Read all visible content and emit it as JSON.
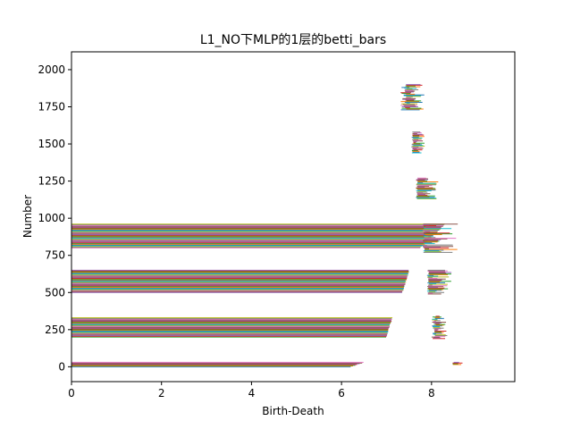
{
  "chart_data": {
    "type": "bar",
    "orientation": "horizontal",
    "title": "L1_NO下MLP的1层的betti_bars",
    "xlabel": "Birth-Death",
    "ylabel": "Number",
    "xlim": [
      0,
      9.85
    ],
    "ylim": [
      -100,
      2120
    ],
    "xticks": [
      0,
      2,
      4,
      6,
      8
    ],
    "yticks": [
      0,
      250,
      500,
      750,
      1000,
      1250,
      1500,
      1750,
      2000
    ],
    "grid": false,
    "palette": [
      "#1f77b4",
      "#ff7f0e",
      "#2ca02c",
      "#d62728",
      "#9467bd",
      "#8c564b",
      "#e377c2",
      "#7f7f7f",
      "#bcbd22",
      "#17becf"
    ],
    "groups": [
      {
        "name": "g0",
        "index_range": [
          0,
          30
        ],
        "start_range": [
          0,
          0
        ],
        "end_range": [
          6.2,
          6.5
        ]
      },
      {
        "name": "g0b",
        "index_range": [
          15,
          30
        ],
        "start_range": [
          8.45,
          8.5
        ],
        "end_range": [
          8.55,
          8.7
        ]
      },
      {
        "name": "g1",
        "index_range": [
          200,
          330
        ],
        "start_range": [
          0,
          0
        ],
        "end_range": [
          7.0,
          7.12
        ]
      },
      {
        "name": "g1b",
        "index_range": [
          190,
          340
        ],
        "start_range": [
          8.0,
          8.1
        ],
        "end_range": [
          8.1,
          8.35
        ]
      },
      {
        "name": "g2",
        "index_range": [
          500,
          650
        ],
        "start_range": [
          0,
          0
        ],
        "end_range": [
          7.35,
          7.5
        ]
      },
      {
        "name": "g2b",
        "index_range": [
          490,
          650
        ],
        "start_range": [
          7.9,
          7.95
        ],
        "end_range": [
          8.0,
          8.45
        ]
      },
      {
        "name": "g3",
        "index_range": [
          800,
          960
        ],
        "start_range": [
          0,
          0
        ],
        "end_range": [
          7.75,
          8.3
        ]
      },
      {
        "name": "g3b",
        "index_range": [
          770,
          960
        ],
        "start_range": [
          7.8,
          7.85
        ],
        "end_range": [
          7.85,
          8.6
        ]
      },
      {
        "name": "g4",
        "index_range": [
          1130,
          1270
        ],
        "start_range": [
          7.65,
          7.7
        ],
        "end_range": [
          7.8,
          8.15
        ]
      },
      {
        "name": "g5",
        "index_range": [
          1440,
          1580
        ],
        "start_range": [
          7.55,
          7.6
        ],
        "end_range": [
          7.65,
          7.85
        ]
      },
      {
        "name": "g6",
        "index_range": [
          1730,
          1900
        ],
        "start_range": [
          7.3,
          7.45
        ],
        "end_range": [
          7.5,
          7.85
        ]
      }
    ]
  }
}
